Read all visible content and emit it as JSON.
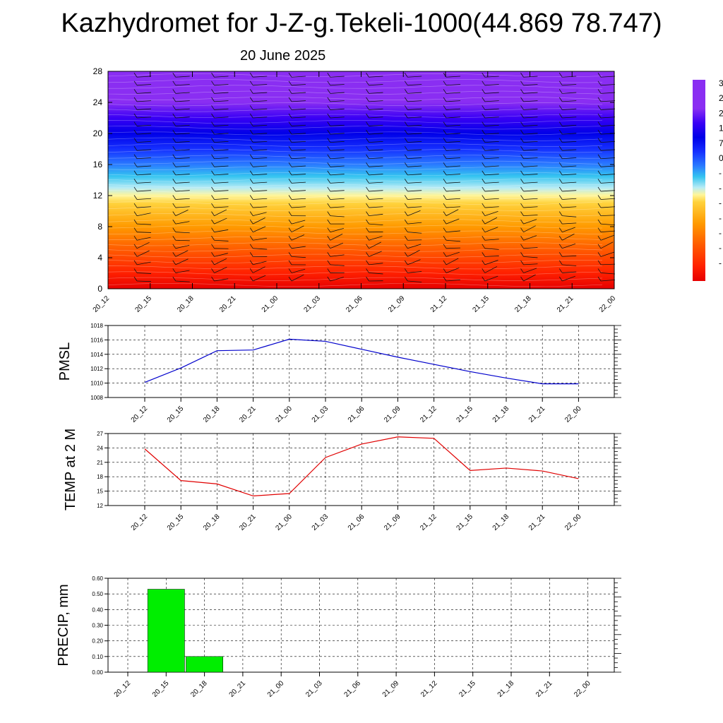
{
  "title": "Kazhydromet for J-Z-g.Tekeli-1000(44.869 78.747)",
  "subtitle": "20 June 2025",
  "colorbar_labels": [
    "3",
    "2",
    "2",
    "1",
    "7",
    "0",
    "-",
    "-",
    "-",
    "-",
    "-",
    "-",
    "-"
  ],
  "colors": {
    "pmsl_line": "#0000cc",
    "temp_line": "#e00000",
    "precip_bar": "#00ee00",
    "grid": "#000000"
  },
  "chart_data": [
    {
      "type": "heatmap",
      "title": "",
      "xlabel": "",
      "ylabel": "",
      "x": [
        "20_12",
        "20_15",
        "20_18",
        "20_21",
        "21_00",
        "21_03",
        "21_06",
        "21_09",
        "21_12",
        "21_15",
        "21_18",
        "21_21",
        "22_00"
      ],
      "yticks": [
        0,
        4,
        8,
        12,
        16,
        20,
        24,
        28
      ],
      "ylim": [
        0,
        28
      ],
      "color_scale": [
        {
          "level": 0,
          "color": "#e60000"
        },
        {
          "level": 2,
          "color": "#ff2000"
        },
        {
          "level": 5,
          "color": "#ff5a00"
        },
        {
          "level": 8,
          "color": "#ff9a00"
        },
        {
          "level": 11,
          "color": "#ffd23c"
        },
        {
          "level": 12,
          "color": "#fff59a"
        },
        {
          "level": 13,
          "color": "#b8ecf5"
        },
        {
          "level": 14.5,
          "color": "#34c4f0"
        },
        {
          "level": 16,
          "color": "#2a7bff"
        },
        {
          "level": 18,
          "color": "#1530ff"
        },
        {
          "level": 20,
          "color": "#0000e8"
        },
        {
          "level": 22,
          "color": "#3a00f5"
        },
        {
          "level": 24,
          "color": "#8a2ef2"
        },
        {
          "level": 28,
          "color": "#8a2ef2"
        }
      ],
      "wind_barbs": true
    },
    {
      "type": "line",
      "ylabel": "PMSL",
      "x": [
        "20_12",
        "20_15",
        "20_18",
        "20_21",
        "21_00",
        "21_03",
        "21_06",
        "21_09",
        "21_12",
        "21_15",
        "21_18",
        "21_21",
        "22_00"
      ],
      "series": [
        {
          "values": [
            1010.1,
            1012.1,
            1014.5,
            1014.6,
            1016.1,
            1015.8,
            1014.7,
            1013.6,
            1012.6,
            1011.6,
            1010.7,
            1009.9,
            1009.9
          ]
        }
      ],
      "yticks": [
        1008,
        1010,
        1012,
        1014,
        1016,
        1018
      ],
      "ylim": [
        1008,
        1018
      ],
      "grid": true
    },
    {
      "type": "line",
      "ylabel": "TEMP at 2 M",
      "x": [
        "20_12",
        "20_15",
        "20_18",
        "20_21",
        "21_00",
        "21_03",
        "21_06",
        "21_09",
        "21_12",
        "21_15",
        "21_18",
        "21_21",
        "22_00"
      ],
      "series": [
        {
          "values": [
            23.8,
            17.2,
            16.5,
            14.0,
            14.5,
            22.0,
            24.8,
            26.3,
            26.0,
            19.3,
            19.8,
            19.2,
            17.6
          ]
        }
      ],
      "yticks": [
        12,
        15,
        18,
        21,
        24,
        27
      ],
      "ylim": [
        12,
        27
      ],
      "grid": true
    },
    {
      "type": "bar",
      "ylabel": "PRECIP, mm",
      "categories": [
        "20_12",
        "20_15",
        "20_18",
        "20_21",
        "21_00",
        "21_03",
        "21_06",
        "21_09",
        "21_12",
        "21_15",
        "21_18",
        "21_21",
        "22_00"
      ],
      "values": [
        0,
        0.53,
        0.1,
        0,
        0,
        0,
        0,
        0,
        0,
        0,
        0,
        0,
        0
      ],
      "yticks": [
        "0.00",
        "0.10",
        "0.20",
        "0.30",
        "0.40",
        "0.50",
        "0.60"
      ],
      "ylim": [
        0,
        0.6
      ],
      "grid": true
    }
  ]
}
